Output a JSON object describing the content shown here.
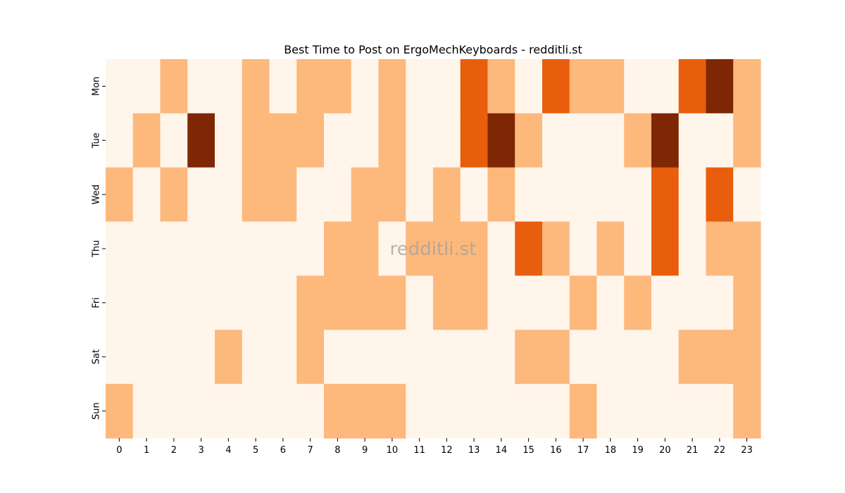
{
  "chart_data": {
    "type": "heatmap",
    "title": "Best Time to Post on ErgoMechKeyboards - redditli.st",
    "xlabel": "",
    "ylabel": "",
    "x": [
      "0",
      "1",
      "2",
      "3",
      "4",
      "5",
      "6",
      "7",
      "8",
      "9",
      "10",
      "11",
      "12",
      "13",
      "14",
      "15",
      "16",
      "17",
      "18",
      "19",
      "20",
      "21",
      "22",
      "23"
    ],
    "y": [
      "Mon",
      "Tue",
      "Wed",
      "Thu",
      "Fri",
      "Sat",
      "Sun"
    ],
    "values": [
      [
        0,
        0,
        1,
        0,
        0,
        1,
        0,
        1,
        1,
        0,
        1,
        0,
        0,
        2,
        1,
        0,
        2,
        1,
        1,
        0,
        0,
        2,
        3,
        1
      ],
      [
        0,
        1,
        0,
        3,
        0,
        1,
        1,
        1,
        0,
        0,
        1,
        0,
        0,
        2,
        3,
        1,
        0,
        0,
        0,
        1,
        3,
        0,
        0,
        1
      ],
      [
        1,
        0,
        1,
        0,
        0,
        1,
        1,
        0,
        0,
        1,
        1,
        0,
        1,
        0,
        1,
        0,
        0,
        0,
        0,
        0,
        2,
        0,
        2,
        0
      ],
      [
        0,
        0,
        0,
        0,
        0,
        0,
        0,
        0,
        1,
        1,
        0,
        1,
        1,
        1,
        0,
        2,
        1,
        0,
        1,
        0,
        2,
        0,
        1,
        1
      ],
      [
        0,
        0,
        0,
        0,
        0,
        0,
        0,
        1,
        1,
        1,
        1,
        0,
        1,
        1,
        0,
        0,
        0,
        1,
        0,
        1,
        0,
        0,
        0,
        1
      ],
      [
        0,
        0,
        0,
        0,
        1,
        0,
        0,
        1,
        0,
        0,
        0,
        0,
        0,
        0,
        0,
        1,
        1,
        0,
        0,
        0,
        0,
        1,
        1,
        1
      ],
      [
        1,
        0,
        0,
        0,
        0,
        0,
        0,
        0,
        1,
        1,
        1,
        0,
        0,
        0,
        0,
        0,
        0,
        1,
        0,
        0,
        0,
        0,
        0,
        1
      ]
    ],
    "value_range": [
      0,
      3
    ],
    "colormap": [
      "#fff5eb",
      "#fdb87c",
      "#e95e0d",
      "#7f2704"
    ],
    "colorbar": false,
    "grid": false,
    "watermark": "redditli.st"
  }
}
